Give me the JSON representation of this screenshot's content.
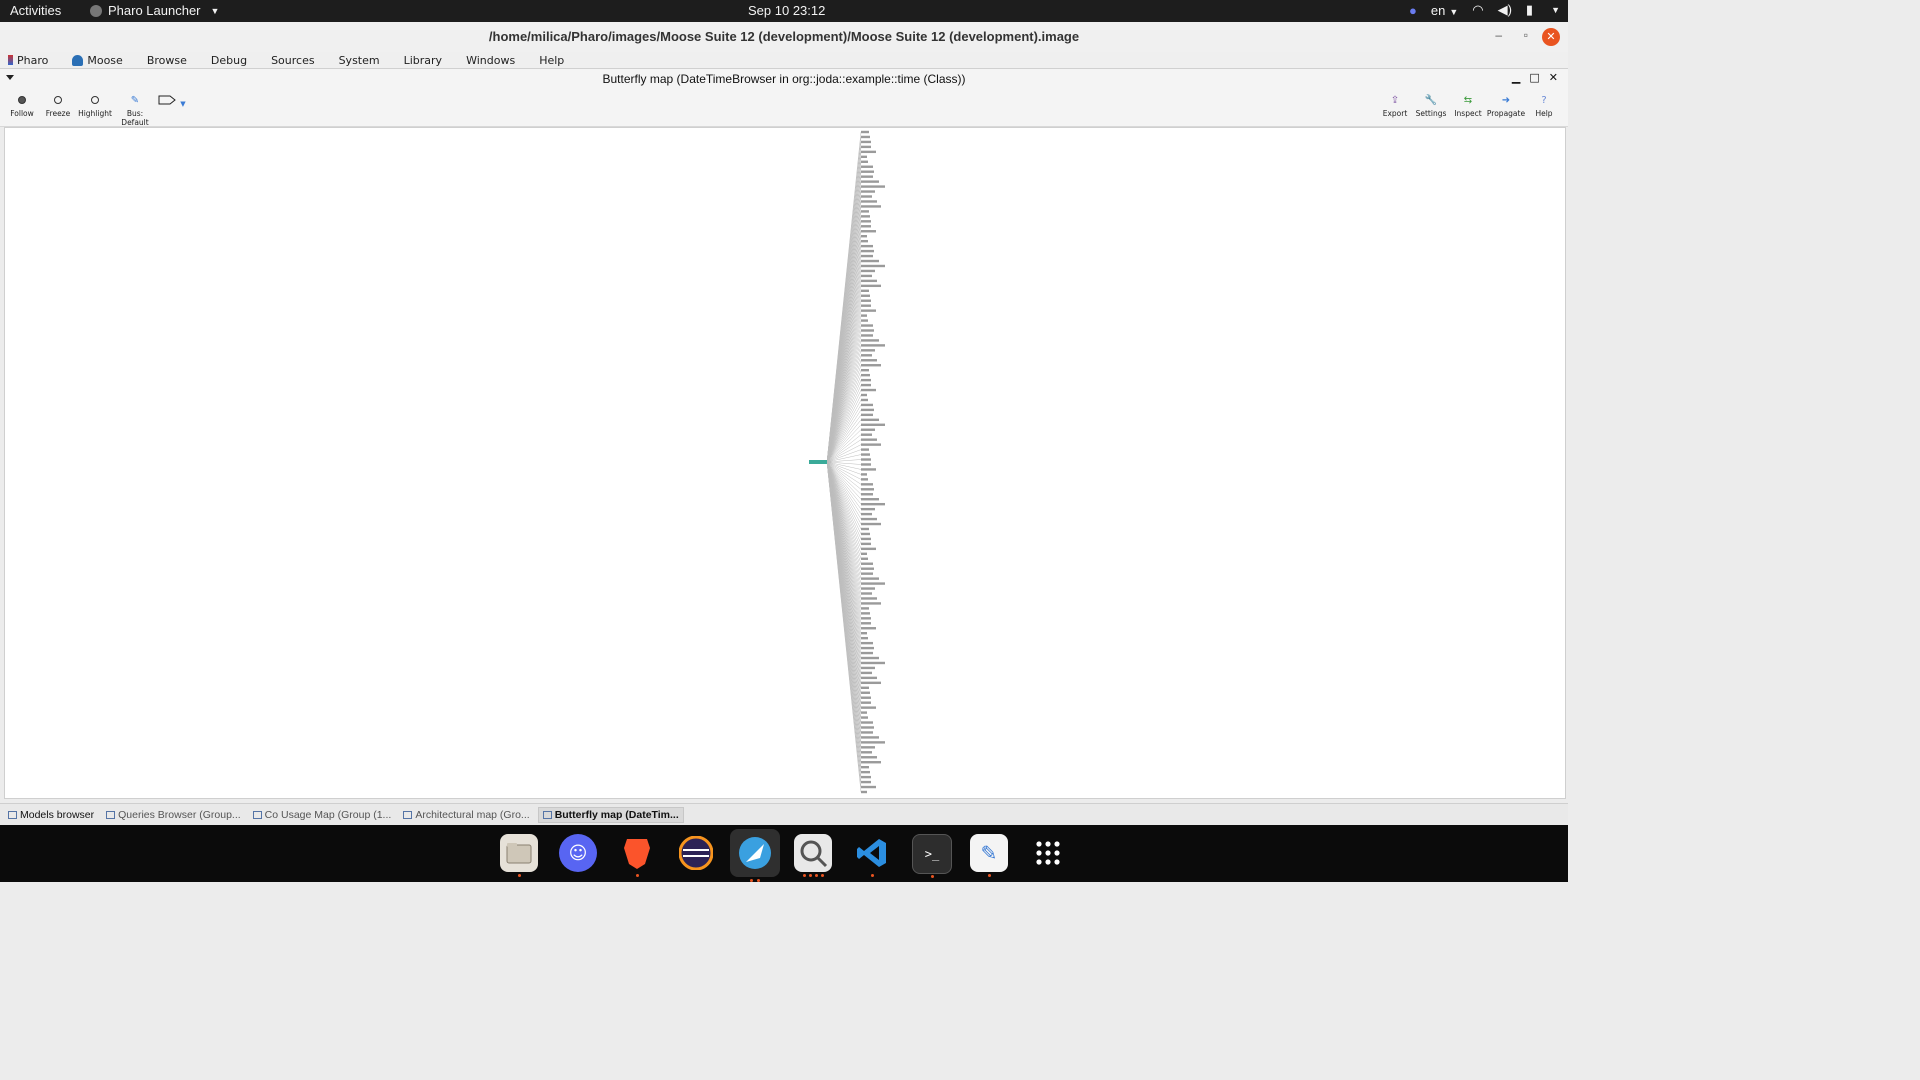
{
  "topbar": {
    "activities": "Activities",
    "app_name": "Pharo Launcher",
    "clock": "Sep 10  23:12",
    "language": "en"
  },
  "window": {
    "title": "/home/milica/Pharo/images/Moose Suite 12 (development)/Moose Suite 12 (development).image"
  },
  "menubar": {
    "items": [
      "Pharo",
      "Moose",
      "Browse",
      "Debug",
      "Sources",
      "System",
      "Library",
      "Windows",
      "Help"
    ]
  },
  "inner_window": {
    "title": "Butterfly map (DateTimeBrowser in org::joda::example::time (Class))"
  },
  "toolbar": {
    "follow": "Follow",
    "freeze": "Freeze",
    "highlight": "Highlight",
    "bus": "Bus: Default",
    "export": "Export",
    "settings": "Settings",
    "inspect": "Inspect",
    "propagate": "Propagate",
    "help": "Help"
  },
  "taskbar": {
    "items": [
      "Models browser",
      "Queries Browser (Group...",
      "Co Usage Map (Group (1...",
      "Architectural map (Gro...",
      "Butterfly map (DateTim..."
    ]
  },
  "dock": {
    "apps": [
      "files-icon",
      "discord-icon",
      "brave-icon",
      "eclipse-icon",
      "pharo-launcher-icon",
      "image-viewer-icon",
      "vscode-icon",
      "terminal-icon",
      "text-editor-icon",
      "app-grid-icon"
    ]
  },
  "colors": {
    "accent": "#e95420",
    "center_node": "#3aaa99",
    "edges": "#bdbdbd"
  }
}
